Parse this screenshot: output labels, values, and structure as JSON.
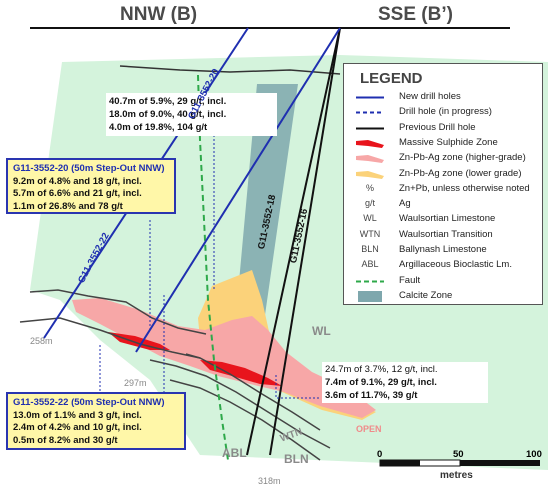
{
  "section": {
    "left_end_label": "NNW (B)",
    "right_end_label": "SSE (B’)"
  },
  "callouts": {
    "hole_20_upper": [
      "40.7m of 5.9%, 29 g/t, incl.",
      "18.0m of 9.0%, 40 g/t, incl.",
      "4.0m of 19.8%, 104 g/t"
    ],
    "hole_16_lower": [
      "24.7m of 3.7%, 12 g/t, incl.",
      "7.4m of 9.1%, 29 g/t, incl.",
      "3.6m of 11.7%, 39 g/t"
    ]
  },
  "boxes": {
    "hole_20": {
      "header": "G11-3552-20 (50m Step-Out NNW)",
      "rows": [
        "9.2m of 4.8% and 18 g/t, incl.",
        "5.7m of 6.6% and 21 g/t, incl.",
        "1.1m of 26.8% and 78 g/t"
      ]
    },
    "hole_22": {
      "header": "G11-3552-22 (50m Step-Out NNW)",
      "rows": [
        "13.0m of 1.1% and 3 g/t, incl.",
        "2.4m of 4.2% and 10 g/t, incl.",
        "0.5m of 8.2% and 30 g/t"
      ]
    }
  },
  "hole_labels": {
    "h20": "G11-3552-20",
    "h22": "G11-3552-22",
    "h18": "G11-3552-18",
    "h16": "G11-3552-16"
  },
  "depths": {
    "d258": "258m",
    "d297": "297m",
    "d318": "318m"
  },
  "unit_labels": {
    "wl": "WL",
    "wtn": "WTN",
    "bln": "BLN",
    "abl": "ABL",
    "open": "OPEN"
  },
  "legend": {
    "title": "LEGEND",
    "items": [
      {
        "text": "New drill holes",
        "symbol": "line",
        "color": "#1f2fb0"
      },
      {
        "text": "Drill hole (in progress)",
        "symbol": "dash",
        "color": "#1f2fb0"
      },
      {
        "text": "Previous Drill hole",
        "symbol": "line",
        "color": "#111111"
      },
      {
        "text": "Massive Sulphide Zone",
        "symbol": "lens",
        "color": "#e8141c"
      },
      {
        "text": "Zn-Pb-Ag zone (higher-grade)",
        "symbol": "lens",
        "color": "#f7a7a7"
      },
      {
        "text": "Zn-Pb-Ag zone (lower grade)",
        "symbol": "lens",
        "color": "#fbd27a"
      },
      {
        "text": "Zn+Pb, unless otherwise noted",
        "symbol": "abbr",
        "abbr": "%"
      },
      {
        "text": "Ag",
        "symbol": "abbr",
        "abbr": "g/t"
      },
      {
        "text": "Waulsortian Limestone",
        "symbol": "abbr",
        "abbr": "WL"
      },
      {
        "text": "Waulsortian Transition",
        "symbol": "abbr",
        "abbr": "WTN"
      },
      {
        "text": "Ballynash Limestone",
        "symbol": "abbr",
        "abbr": "BLN"
      },
      {
        "text": "Argillaceous Bioclastic Lm.",
        "symbol": "abbr",
        "abbr": "ABL"
      },
      {
        "text": "Fault",
        "symbol": "fault",
        "color": "#2ea84a"
      },
      {
        "text": "Calcite Zone",
        "symbol": "box",
        "color": "#7ea7ad"
      }
    ]
  },
  "scale": {
    "ticks": [
      "0",
      "50",
      "100"
    ],
    "unit": "metres"
  },
  "colors": {
    "new_hole": "#1f2fb0",
    "previous_hole": "#111111",
    "massive_sulphide": "#e8141c",
    "higher_grade": "#f7a7a7",
    "lower_grade": "#fbd27a",
    "waulsortian": "#d4f3dc",
    "calcite": "#7ea7ad",
    "fault": "#2ea84a"
  }
}
